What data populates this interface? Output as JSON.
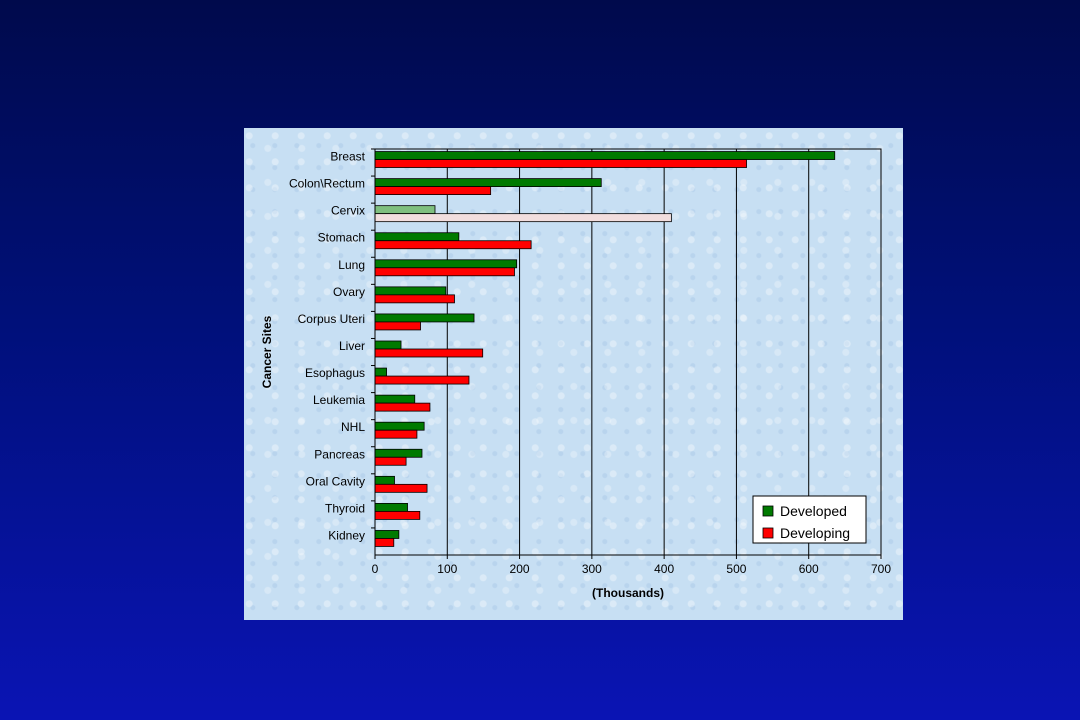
{
  "chart_data": {
    "type": "bar",
    "orientation": "horizontal",
    "categories": [
      "Breast",
      "Colon\\Rectum",
      "Cervix",
      "Stomach",
      "Lung",
      "Ovary",
      "Corpus Uteri",
      "Liver",
      "Esophagus",
      "Leukemia",
      "NHL",
      "Pancreas",
      "Oral Cavity",
      "Thyroid",
      "Kidney"
    ],
    "series": [
      {
        "name": "Developed",
        "color": "#007a00",
        "values": [
          636,
          313,
          83,
          116,
          196,
          98,
          137,
          36,
          16,
          55,
          68,
          65,
          27,
          45,
          33
        ]
      },
      {
        "name": "Developing",
        "color": "#ff0000",
        "values": [
          514,
          160,
          410,
          216,
          193,
          110,
          63,
          149,
          130,
          76,
          58,
          43,
          72,
          62,
          26
        ]
      }
    ],
    "highlight": {
      "category": "Cervix",
      "series_colors": [
        "#7fbf7f",
        "#f2dede"
      ]
    },
    "xlabel": "(Thousands)",
    "ylabel": "Cancer Sites",
    "xlim": [
      0,
      700
    ],
    "xticks": [
      "0",
      "100",
      "200",
      "300",
      "400",
      "500",
      "600",
      "700"
    ],
    "grid": "vertical",
    "legend_position": "bottom-right"
  }
}
